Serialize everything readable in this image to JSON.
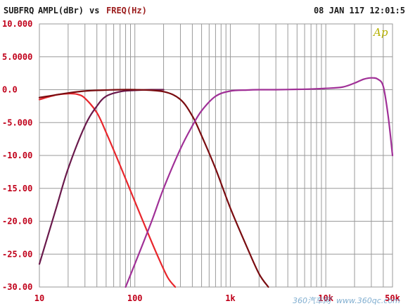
{
  "header": {
    "title": "SUBFRQ",
    "y_quantity": "AMPL(dBr)",
    "vs": "vs",
    "x_quantity": "FREQ(Hz)",
    "timestamp": "08 JAN 117 12:01:5"
  },
  "logo_text": "Ap",
  "watermark": {
    "cn": "360汽车网",
    "url": "www.360qc.com"
  },
  "colors": {
    "background": "#ffffff",
    "grid": "#9a9a9a",
    "axis_text": "#c0001a",
    "header_text": "#1a1a1a",
    "x_quantity": "#9b1c1c",
    "logo": "#b5b000"
  },
  "chart_data": {
    "type": "line",
    "x_scale": "log",
    "xlim": [
      10,
      50000
    ],
    "ylim": [
      -30,
      10
    ],
    "grid": true,
    "xlabel": "FREQ(Hz)",
    "ylabel": "AMPL(dBr)",
    "x_ticks": [
      {
        "value": 10,
        "label": "10"
      },
      {
        "value": 100,
        "label": "100"
      },
      {
        "value": 1000,
        "label": "1k"
      },
      {
        "value": 10000,
        "label": "10k"
      },
      {
        "value": 50000,
        "label": "50k"
      }
    ],
    "y_ticks": [
      {
        "value": 10,
        "label": "10.000"
      },
      {
        "value": 5,
        "label": "5.0000"
      },
      {
        "value": 0,
        "label": "0.0"
      },
      {
        "value": -5,
        "label": "-5.000"
      },
      {
        "value": -10,
        "label": "-10.00"
      },
      {
        "value": -15,
        "label": "-15.00"
      },
      {
        "value": -20,
        "label": "-20.00"
      },
      {
        "value": -25,
        "label": "-25.00"
      },
      {
        "value": -30,
        "label": "-30.00"
      }
    ],
    "series": [
      {
        "color": "#e8262c",
        "x": [
          10,
          15,
          20,
          25,
          30,
          40,
          50,
          70,
          100,
          130,
          170,
          220,
          265
        ],
        "y": [
          -1.5,
          -0.8,
          -0.6,
          -0.7,
          -1.3,
          -3.5,
          -6.5,
          -11.5,
          -17.0,
          -21.0,
          -25.0,
          -28.5,
          -30.0
        ]
      },
      {
        "color": "#6a1a4c",
        "x": [
          10,
          15,
          20,
          30,
          40,
          50,
          70,
          100,
          150,
          200
        ],
        "y": [
          -26.5,
          -18.0,
          -12.0,
          -5.5,
          -2.5,
          -1.0,
          -0.3,
          -0.1,
          0.0,
          0.0
        ]
      },
      {
        "color": "#7a0c10",
        "x": [
          10,
          20,
          30,
          50,
          100,
          200,
          300,
          400,
          500,
          700,
          1000,
          1500,
          2000,
          2500
        ],
        "y": [
          -1.2,
          -0.5,
          -0.2,
          -0.05,
          0.0,
          -0.3,
          -1.5,
          -4.0,
          -7.0,
          -12.0,
          -18.0,
          -24.0,
          -28.0,
          -30.0
        ]
      },
      {
        "color": "#a03097",
        "x": [
          80,
          100,
          150,
          200,
          300,
          400,
          500,
          700,
          1000,
          1500,
          2000,
          3000,
          5000,
          7000,
          10000,
          15000,
          20000,
          25000,
          30000,
          35000,
          40000,
          45000,
          50000
        ],
        "y": [
          -30.0,
          -26.5,
          -20.0,
          -15.0,
          -9.0,
          -5.5,
          -3.2,
          -1.0,
          -0.2,
          -0.05,
          0.0,
          0.0,
          0.05,
          0.1,
          0.2,
          0.4,
          1.0,
          1.6,
          1.8,
          1.6,
          0.5,
          -4.0,
          -10.0
        ]
      }
    ]
  }
}
